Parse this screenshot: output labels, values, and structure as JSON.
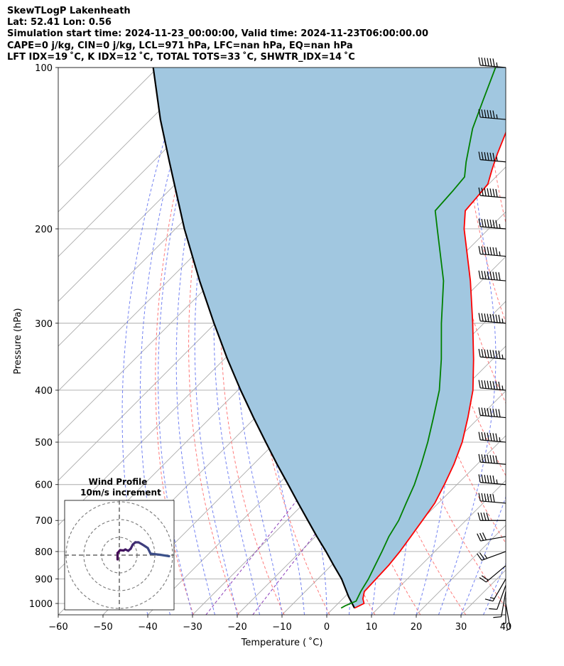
{
  "header": {
    "line1": "SkewTLogP Lakenheath",
    "line2": "Lat: 52.41   Lon: 0.56",
    "line3": "Simulation start time: 2024-11-23_00:00:00, Valid time: 2024-11-23T06:00:00.00",
    "line4": "CAPE=0 j/kg, CIN=0 j/kg, LCL=971 hPa, LFC=nan hPa, EQ=nan hPa",
    "line5": "LFT IDX=19 ˚C, K IDX=12 ˚C, TOTAL TOTS=33 ˚C, SHWTR_IDX=14 ˚C"
  },
  "colors": {
    "temperature": "#ff0000",
    "dewpoint": "#008000",
    "parcel": "#000000",
    "fill": "#a1c7e0",
    "isotherm": "#aaaaaa",
    "dry_adiabat": "#ff6464",
    "moist_adiabat": "#5a6cf0",
    "mixing_ratio": "#8a3cb8",
    "hodograph_start": "#440154",
    "hodograph_end": "#3b528b"
  },
  "chart_data": {
    "type": "line",
    "xlabel": "Temperature ( ˚C)",
    "ylabel": "Pressure (hPa)",
    "xlim": [
      -60,
      40
    ],
    "ylim": [
      1050,
      100
    ],
    "x_ticks": [
      "−60",
      "−50",
      "−40",
      "−30",
      "−20",
      "−10",
      "0",
      "10",
      "20",
      "30",
      "40"
    ],
    "y_ticks": [
      "100",
      "200",
      "300",
      "400",
      "500",
      "600",
      "700",
      "800",
      "900",
      "1000"
    ],
    "y_tick_values": [
      100,
      200,
      300,
      400,
      500,
      600,
      700,
      800,
      900,
      1000
    ],
    "y_scale": "log",
    "skew": "45 deg",
    "grid": true,
    "series": [
      {
        "role": "temperature",
        "points": [
          [
            1020,
            4.7
          ],
          [
            1000,
            5.8
          ],
          [
            980,
            4.5
          ],
          [
            950,
            3.2
          ],
          [
            900,
            3.0
          ],
          [
            850,
            2.8
          ],
          [
            800,
            2.2
          ],
          [
            750,
            1.3
          ],
          [
            700,
            0.3
          ],
          [
            650,
            -0.8
          ],
          [
            600,
            -2.8
          ],
          [
            550,
            -5.2
          ],
          [
            500,
            -8.3
          ],
          [
            450,
            -12.5
          ],
          [
            400,
            -17.5
          ],
          [
            350,
            -24.3
          ],
          [
            300,
            -32.5
          ],
          [
            250,
            -42.5
          ],
          [
            200,
            -55.5
          ],
          [
            185,
            -59.3
          ],
          [
            175,
            -59.7
          ],
          [
            165,
            -60.2
          ],
          [
            155,
            -62.5
          ],
          [
            145,
            -64.8
          ],
          [
            130,
            -68.2
          ],
          [
            115,
            -72.5
          ],
          [
            100,
            -75.5
          ]
        ]
      },
      {
        "role": "dewpoint",
        "points": [
          [
            1020,
            1.7
          ],
          [
            1010,
            2.1
          ],
          [
            990,
            3.5
          ],
          [
            950,
            2.4
          ],
          [
            900,
            1.3
          ],
          [
            850,
            -0.2
          ],
          [
            800,
            -1.8
          ],
          [
            750,
            -3.6
          ],
          [
            700,
            -5.0
          ],
          [
            650,
            -7.2
          ],
          [
            600,
            -9.5
          ],
          [
            550,
            -12.5
          ],
          [
            500,
            -16.0
          ],
          [
            450,
            -20.2
          ],
          [
            400,
            -25.0
          ],
          [
            350,
            -31.5
          ],
          [
            300,
            -39.5
          ],
          [
            250,
            -48.5
          ],
          [
            200,
            -61.5
          ],
          [
            185,
            -66.0
          ],
          [
            170,
            -66.5
          ],
          [
            160,
            -67.0
          ],
          [
            150,
            -70.0
          ],
          [
            130,
            -76.0
          ],
          [
            115,
            -80.0
          ],
          [
            100,
            -84.5
          ]
        ]
      },
      {
        "role": "parcel",
        "points": [
          [
            1020,
            4.7
          ],
          [
            971,
            0.8
          ],
          [
            900,
            -4.7
          ],
          [
            850,
            -9.4
          ],
          [
            800,
            -14.3
          ],
          [
            750,
            -19.7
          ],
          [
            700,
            -25.3
          ],
          [
            650,
            -31.3
          ],
          [
            600,
            -37.7
          ],
          [
            550,
            -44.7
          ],
          [
            500,
            -52.2
          ],
          [
            450,
            -60.4
          ],
          [
            400,
            -69.4
          ],
          [
            350,
            -79.3
          ],
          [
            300,
            -90.3
          ],
          [
            250,
            -103.0
          ],
          [
            200,
            -118.0
          ],
          [
            150,
            -136.3
          ],
          [
            125,
            -147.8
          ],
          [
            100,
            -161.0
          ]
        ]
      }
    ],
    "wind_barbs_pressure": [
      1000,
      975,
      950,
      925,
      900,
      850,
      800,
      750,
      700,
      650,
      600,
      550,
      500,
      450,
      400,
      350,
      300,
      250,
      225,
      200,
      175,
      150,
      125,
      100
    ],
    "wind_barbs_speed_kt": [
      5,
      5,
      10,
      10,
      15,
      20,
      25,
      30,
      40,
      60,
      65,
      70,
      75,
      80,
      85,
      85,
      85,
      80,
      75,
      75,
      70,
      65,
      65,
      65
    ],
    "wind_barbs_dir_deg": [
      170,
      180,
      190,
      200,
      210,
      230,
      250,
      260,
      270,
      275,
      275,
      275,
      275,
      275,
      275,
      275,
      275,
      275,
      275,
      275,
      275,
      275,
      275,
      275
    ],
    "hodograph": {
      "title_line1": "Wind Profile",
      "title_line2": "10m/s increment",
      "points_uv": [
        [
          -0.5,
          -1.2
        ],
        [
          -0.5,
          0.6
        ],
        [
          0.2,
          1.4
        ],
        [
          1.2,
          1.3
        ],
        [
          1.7,
          1.6
        ],
        [
          2.5,
          1.2
        ],
        [
          3.2,
          1.8
        ],
        [
          3.8,
          3.0
        ],
        [
          4.5,
          3.6
        ],
        [
          5.4,
          3.6
        ],
        [
          6.3,
          3.1
        ],
        [
          7.1,
          2.6
        ],
        [
          8.0,
          2.0
        ],
        [
          8.8,
          0.4
        ],
        [
          11.5,
          0.1
        ],
        [
          14.0,
          -0.3
        ]
      ]
    }
  }
}
